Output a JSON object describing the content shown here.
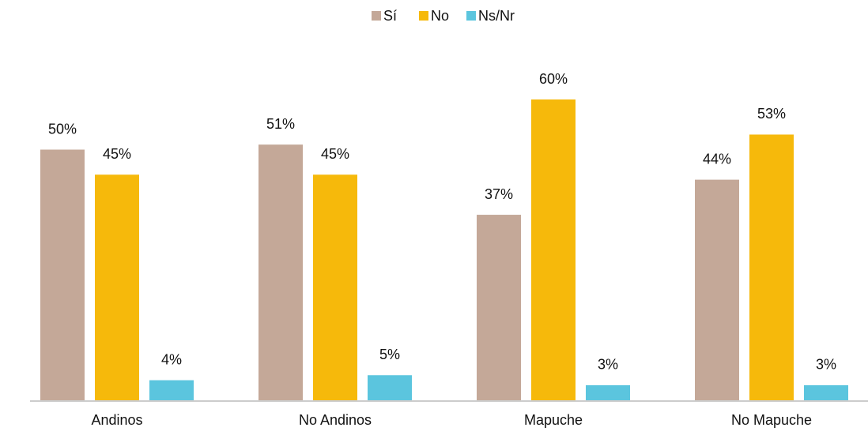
{
  "chart_data": {
    "type": "bar",
    "categories": [
      "Andinos",
      "No Andinos",
      "Mapuche",
      "No Mapuche"
    ],
    "series": [
      {
        "name": "Sí",
        "color": "#c4a898",
        "values": [
          50,
          51,
          37,
          44
        ],
        "value_labels": [
          "50%",
          "51%",
          "37%",
          "44%"
        ]
      },
      {
        "name": "No",
        "color": "#f6b90b",
        "values": [
          45,
          45,
          60,
          53
        ],
        "value_labels": [
          "45%",
          "45%",
          "60%",
          "53%"
        ]
      },
      {
        "name": "Ns/Nr",
        "color": "#5bc5de",
        "values": [
          4,
          5,
          3,
          3
        ],
        "value_labels": [
          "4%",
          "5%",
          "3%",
          "3%"
        ]
      }
    ],
    "legend": "top"
  }
}
